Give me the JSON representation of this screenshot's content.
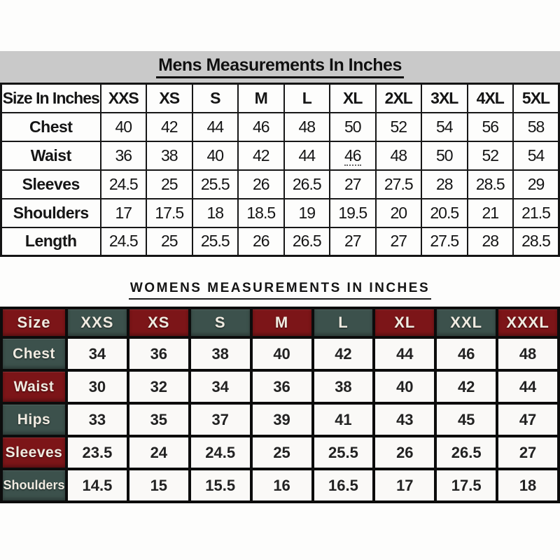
{
  "chart_data": [
    {
      "type": "table",
      "title": "Mens Measurements In Inches",
      "header": [
        "Size In Inches",
        "XXS",
        "XS",
        "S",
        "M",
        "L",
        "XL",
        "2XL",
        "3XL",
        "4XL",
        "5XL"
      ],
      "rows": [
        {
          "label": "Chest",
          "values": [
            "40",
            "42",
            "44",
            "46",
            "48",
            "50",
            "52",
            "54",
            "56",
            "58"
          ]
        },
        {
          "label": "Waist",
          "values": [
            "36",
            "38",
            "40",
            "42",
            "44",
            "46",
            "48",
            "50",
            "52",
            "54"
          ]
        },
        {
          "label": "Sleeves",
          "values": [
            "24.5",
            "25",
            "25.5",
            "26",
            "26.5",
            "27",
            "27.5",
            "28",
            "28.5",
            "29"
          ]
        },
        {
          "label": "Shoulders",
          "values": [
            "17",
            "17.5",
            "18",
            "18.5",
            "19",
            "19.5",
            "20",
            "20.5",
            "21",
            "21.5"
          ]
        },
        {
          "label": "Length",
          "values": [
            "24.5",
            "25",
            "25.5",
            "26",
            "26.5",
            "27",
            "27",
            "27.5",
            "28",
            "28.5"
          ]
        }
      ]
    },
    {
      "type": "table",
      "title": "WOMENS MEASUREMENTS IN INCHES",
      "header": [
        "Size",
        "XXS",
        "XS",
        "S",
        "M",
        "L",
        "XL",
        "XXL",
        "XXXL"
      ],
      "rows": [
        {
          "label": "Chest",
          "values": [
            "34",
            "36",
            "38",
            "40",
            "42",
            "44",
            "46",
            "48"
          ]
        },
        {
          "label": "Waist",
          "values": [
            "30",
            "32",
            "34",
            "36",
            "38",
            "40",
            "42",
            "44"
          ]
        },
        {
          "label": "Hips",
          "values": [
            "33",
            "35",
            "37",
            "39",
            "41",
            "43",
            "45",
            "47"
          ]
        },
        {
          "label": "Sleeves",
          "values": [
            "23.5",
            "24",
            "24.5",
            "25",
            "25.5",
            "26",
            "26.5",
            "27"
          ]
        },
        {
          "label": "Shoulders",
          "values": [
            "14.5",
            "15",
            "15.5",
            "16",
            "16.5",
            "17",
            "17.5",
            "18"
          ]
        }
      ]
    }
  ],
  "colors": {
    "maroon": "#7c1518",
    "dark_green": "#3c514c",
    "title_band_gray": "#c9c9c9",
    "table_border": "#0c0c0c",
    "womens_cell_text": "#f0ebe1"
  },
  "mens_artifact_underline": {
    "row_index": 1,
    "value_index": 5
  }
}
